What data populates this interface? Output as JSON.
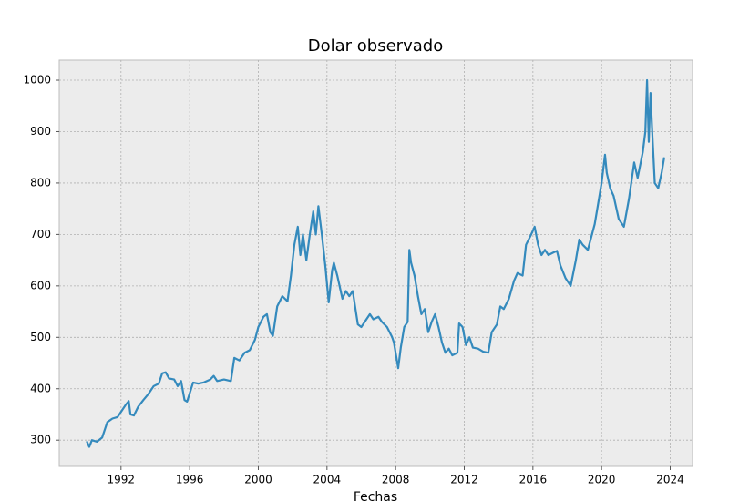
{
  "chart_data": {
    "type": "line",
    "title": "Dolar observado",
    "x_label": "Fechas",
    "x": [
      1990.0,
      1990.15,
      1990.3,
      1990.6,
      1990.9,
      1991.2,
      1991.5,
      1991.8,
      1992.0,
      1992.3,
      1992.45,
      1992.55,
      1992.75,
      1993.0,
      1993.3,
      1993.6,
      1993.9,
      1994.2,
      1994.4,
      1994.6,
      1994.8,
      1995.1,
      1995.3,
      1995.5,
      1995.7,
      1995.85,
      1996.2,
      1996.5,
      1996.8,
      1997.2,
      1997.4,
      1997.6,
      1998.0,
      1998.4,
      1998.6,
      1998.9,
      1999.2,
      1999.5,
      1999.8,
      2000.0,
      2000.3,
      2000.5,
      2000.7,
      2000.85,
      2001.1,
      2001.4,
      2001.7,
      2001.9,
      2002.1,
      2002.3,
      2002.45,
      2002.6,
      2002.8,
      2003.0,
      2003.2,
      2003.35,
      2003.5,
      2003.7,
      2003.9,
      2004.1,
      2004.3,
      2004.4,
      2004.6,
      2004.9,
      2005.1,
      2005.3,
      2005.5,
      2005.8,
      2006.0,
      2006.3,
      2006.5,
      2006.7,
      2007.0,
      2007.2,
      2007.5,
      2007.8,
      2007.9,
      2008.15,
      2008.3,
      2008.5,
      2008.7,
      2008.8,
      2008.9,
      2009.1,
      2009.3,
      2009.5,
      2009.7,
      2009.9,
      2010.1,
      2010.3,
      2010.5,
      2010.7,
      2010.9,
      2011.1,
      2011.3,
      2011.6,
      2011.7,
      2011.9,
      2012.1,
      2012.3,
      2012.5,
      2012.8,
      2013.1,
      2013.4,
      2013.6,
      2013.9,
      2014.1,
      2014.3,
      2014.6,
      2014.9,
      2015.1,
      2015.4,
      2015.6,
      2015.9,
      2016.1,
      2016.3,
      2016.5,
      2016.7,
      2016.9,
      2017.2,
      2017.4,
      2017.6,
      2017.9,
      2018.2,
      2018.5,
      2018.7,
      2018.9,
      2019.2,
      2019.4,
      2019.6,
      2019.8,
      2020.0,
      2020.2,
      2020.3,
      2020.5,
      2020.7,
      2021.0,
      2021.3,
      2021.6,
      2021.9,
      2022.1,
      2022.4,
      2022.55,
      2022.65,
      2022.75,
      2022.85,
      2022.95,
      2023.1,
      2023.3,
      2023.5,
      2023.65
    ],
    "values": [
      298,
      287,
      300,
      297,
      305,
      335,
      342,
      345,
      355,
      370,
      376,
      350,
      348,
      365,
      378,
      390,
      405,
      410,
      430,
      432,
      420,
      418,
      405,
      415,
      378,
      375,
      412,
      410,
      412,
      418,
      425,
      415,
      418,
      415,
      460,
      455,
      470,
      475,
      495,
      520,
      540,
      545,
      510,
      503,
      560,
      580,
      570,
      620,
      680,
      715,
      660,
      700,
      650,
      700,
      745,
      700,
      755,
      700,
      640,
      568,
      630,
      645,
      620,
      575,
      590,
      580,
      590,
      525,
      520,
      535,
      545,
      535,
      540,
      530,
      520,
      500,
      490,
      440,
      480,
      520,
      530,
      670,
      645,
      620,
      580,
      545,
      555,
      510,
      530,
      545,
      520,
      490,
      470,
      478,
      465,
      470,
      527,
      520,
      485,
      500,
      480,
      478,
      472,
      470,
      510,
      525,
      560,
      555,
      575,
      610,
      625,
      620,
      680,
      700,
      715,
      680,
      660,
      670,
      660,
      665,
      668,
      640,
      615,
      600,
      650,
      690,
      680,
      670,
      695,
      720,
      760,
      800,
      855,
      820,
      790,
      775,
      730,
      715,
      770,
      840,
      810,
      860,
      900,
      1000,
      880,
      975,
      900,
      800,
      790,
      820,
      850
    ],
    "color": "#348abd",
    "xlim": [
      1988.4,
      2025.3
    ],
    "ylim": [
      249,
      1039
    ],
    "xticks": [
      1992,
      1996,
      2000,
      2004,
      2008,
      2012,
      2016,
      2020,
      2024
    ],
    "yticks": [
      300,
      400,
      500,
      600,
      700,
      800,
      900,
      1000
    ],
    "grid": true
  }
}
